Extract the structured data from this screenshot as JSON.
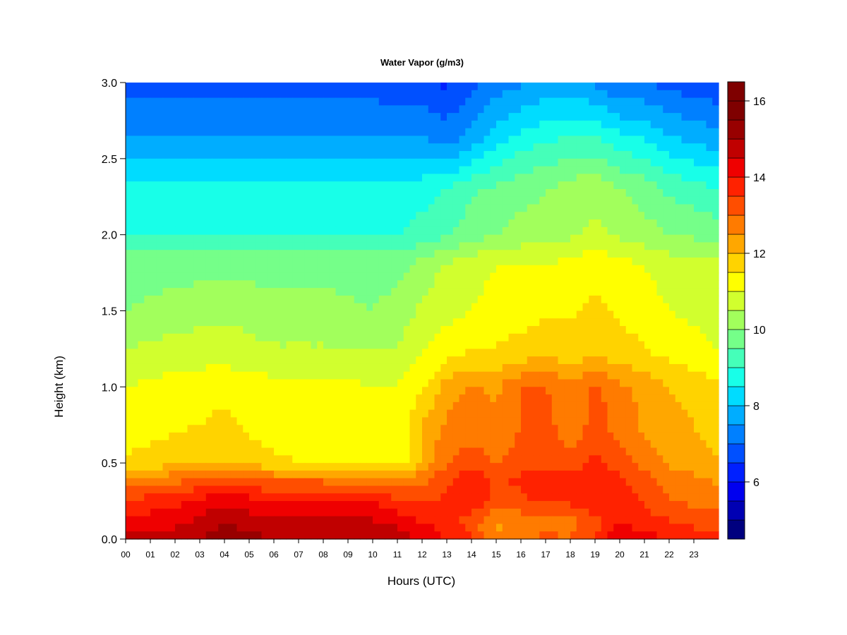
{
  "chart_data": {
    "type": "heatmap",
    "title": "Water Vapor (g/m3)",
    "xlabel": "Hours (UTC)",
    "ylabel": "Height (km)",
    "xlim": [
      0,
      24
    ],
    "ylim": [
      0,
      3.0
    ],
    "x_ticks": [
      "00",
      "01",
      "02",
      "03",
      "04",
      "05",
      "06",
      "07",
      "08",
      "09",
      "10",
      "11",
      "12",
      "13",
      "14",
      "15",
      "16",
      "17",
      "18",
      "19",
      "20",
      "21",
      "22",
      "23"
    ],
    "y_ticks": [
      "0.0",
      "0.5",
      "1.0",
      "1.5",
      "2.0",
      "2.5",
      "3.0"
    ],
    "colorbar": {
      "min": 4.5,
      "max": 16.5,
      "step": 0.5,
      "tick_labels": [
        "6",
        "8",
        "10",
        "12",
        "14",
        "16"
      ],
      "colors": [
        "#00007f",
        "#0000b3",
        "#0000ef",
        "#0020ff",
        "#0050ff",
        "#0080ff",
        "#00adff",
        "#00dcff",
        "#18ffe8",
        "#45ffb9",
        "#75ff89",
        "#a2ff5c",
        "#d1ff2e",
        "#ffff00",
        "#ffd300",
        "#ffa700",
        "#ff7b00",
        "#ff4e00",
        "#ff2200",
        "#ef0000",
        "#c00000",
        "#980000",
        "#7f0000",
        "#7f0000"
      ]
    },
    "hours": [
      0,
      2,
      4,
      6,
      8,
      10,
      11,
      12,
      13,
      14,
      15,
      16,
      17,
      18,
      19,
      20,
      21,
      22,
      24
    ],
    "heights_km": [
      0.0,
      0.1,
      0.25,
      0.4,
      0.5,
      0.75,
      1.0,
      1.2,
      1.5,
      1.8,
      2.0,
      2.3,
      2.6,
      3.0
    ],
    "values_gm3": [
      [
        14.6,
        14.8,
        15.3,
        15.0,
        15.0,
        15.0,
        14.8,
        14.4,
        14.0,
        13.6,
        12.6,
        12.8,
        13.2,
        13.0,
        13.6,
        14.6,
        14.2,
        14.0,
        13.6
      ],
      [
        14.2,
        14.4,
        15.0,
        14.6,
        14.6,
        14.6,
        14.4,
        14.0,
        13.8,
        13.2,
        12.4,
        12.6,
        12.6,
        12.8,
        13.2,
        14.0,
        13.8,
        13.6,
        13.2
      ],
      [
        13.6,
        13.8,
        14.4,
        14.0,
        14.0,
        14.0,
        13.6,
        13.4,
        13.6,
        13.8,
        13.4,
        13.4,
        13.6,
        13.6,
        14.0,
        13.8,
        13.4,
        13.0,
        12.8
      ],
      [
        12.4,
        12.8,
        13.2,
        12.8,
        12.8,
        12.6,
        12.4,
        12.8,
        13.4,
        13.8,
        13.4,
        13.6,
        13.8,
        13.6,
        14.0,
        13.6,
        13.2,
        12.8,
        12.4
      ],
      [
        11.6,
        11.8,
        12.0,
        11.6,
        11.4,
        11.2,
        11.2,
        12.0,
        13.0,
        13.2,
        13.0,
        13.2,
        13.4,
        13.2,
        13.6,
        13.2,
        12.8,
        12.4,
        12.0
      ],
      [
        11.2,
        11.4,
        11.6,
        11.2,
        11.2,
        11.0,
        11.0,
        12.0,
        12.6,
        12.8,
        12.6,
        13.0,
        13.2,
        12.6,
        13.2,
        12.8,
        12.4,
        12.2,
        11.8
      ],
      [
        11.0,
        11.2,
        11.4,
        11.2,
        11.2,
        11.0,
        11.0,
        11.4,
        12.2,
        12.6,
        12.4,
        13.0,
        13.0,
        12.6,
        13.2,
        12.6,
        12.4,
        12.0,
        11.6
      ],
      [
        10.6,
        10.8,
        10.8,
        10.6,
        10.6,
        10.6,
        10.6,
        11.0,
        11.4,
        11.6,
        11.6,
        11.8,
        12.0,
        11.8,
        12.0,
        11.8,
        11.6,
        11.4,
        11.0
      ],
      [
        10.0,
        10.2,
        10.4,
        10.2,
        10.2,
        10.0,
        10.2,
        10.6,
        10.8,
        11.0,
        11.2,
        11.2,
        11.4,
        11.4,
        11.6,
        11.4,
        11.2,
        11.0,
        10.8
      ],
      [
        9.8,
        9.8,
        9.8,
        9.8,
        9.8,
        9.8,
        9.8,
        10.2,
        10.6,
        10.8,
        11.0,
        11.0,
        11.0,
        11.2,
        11.4,
        11.2,
        11.0,
        10.8,
        10.6
      ],
      [
        9.0,
        9.0,
        9.0,
        9.0,
        9.0,
        9.0,
        9.0,
        9.2,
        9.4,
        9.8,
        10.0,
        10.2,
        10.2,
        10.4,
        10.6,
        10.4,
        10.2,
        10.0,
        9.8
      ],
      [
        8.6,
        8.6,
        8.6,
        8.6,
        8.6,
        8.6,
        8.6,
        8.8,
        9.0,
        9.4,
        9.6,
        9.8,
        10.0,
        10.2,
        10.4,
        10.0,
        9.8,
        9.4,
        9.0
      ],
      [
        7.6,
        7.6,
        7.6,
        7.6,
        7.6,
        7.6,
        7.6,
        7.6,
        7.4,
        7.8,
        8.4,
        8.8,
        9.0,
        9.2,
        9.2,
        8.8,
        8.6,
        8.2,
        7.8
      ],
      [
        6.8,
        6.8,
        6.8,
        6.8,
        6.8,
        6.8,
        6.6,
        6.6,
        6.4,
        6.8,
        7.2,
        7.4,
        7.6,
        7.6,
        7.4,
        7.0,
        7.0,
        6.8,
        6.6
      ]
    ]
  }
}
